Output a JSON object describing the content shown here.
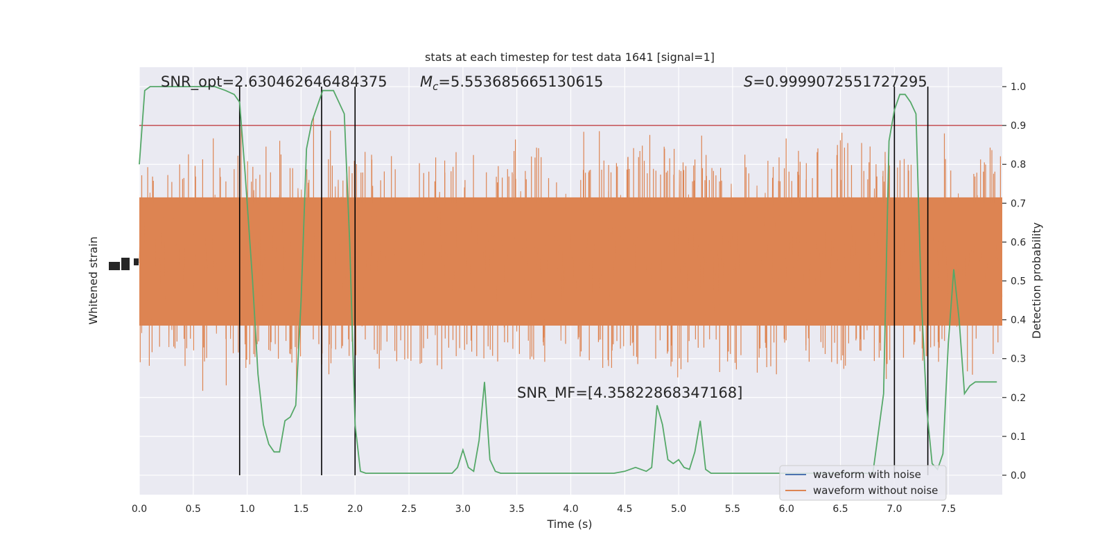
{
  "chart_data": {
    "type": "line",
    "title": "stats at each timestep for test data 1641 [signal=1]",
    "xlabel": "Time (s)",
    "ylabel_left": "Whitened strain",
    "ylabel_right": "Detection probability",
    "xlim": [
      0,
      8
    ],
    "ylim_right": [
      -0.05,
      1.05
    ],
    "xticks": [
      "0.0",
      "0.5",
      "1.0",
      "1.5",
      "2.0",
      "2.5",
      "3.0",
      "3.5",
      "4.0",
      "4.5",
      "5.0",
      "5.5",
      "6.0",
      "6.5",
      "7.0",
      "7.5"
    ],
    "yticks_right": [
      "0.0",
      "0.1",
      "0.2",
      "0.3",
      "0.4",
      "0.5",
      "0.6",
      "0.7",
      "0.8",
      "0.9",
      "1.0"
    ],
    "grid": true,
    "legend_position": "bottom-right",
    "annotations": {
      "snr_opt": "SNR_opt=2.630462646484375",
      "mc_symbol": "M",
      "mc_sub": "c",
      "mc_value": "=5.553685665130615",
      "s_symbol": "S",
      "s_value": "=0.9999072551727295",
      "snr_mf": "SNR_MF=[4.35822868347168]"
    },
    "threshold": 0.9,
    "vertical_lines_x": [
      0.93,
      1.69,
      2.0,
      7.0,
      7.31
    ],
    "series": [
      {
        "name": "waveform with noise",
        "color": "#4c72b0"
      },
      {
        "name": "waveform without noise",
        "color": "#dd8452"
      }
    ],
    "detection_probability": {
      "color": "#55a868",
      "x": [
        0.0,
        0.05,
        0.1,
        0.2,
        0.3,
        0.5,
        0.7,
        0.8,
        0.88,
        0.93,
        0.98,
        1.05,
        1.1,
        1.15,
        1.2,
        1.25,
        1.3,
        1.35,
        1.4,
        1.45,
        1.5,
        1.55,
        1.6,
        1.65,
        1.7,
        1.75,
        1.8,
        1.85,
        1.9,
        1.95,
        2.0,
        2.05,
        2.1,
        2.15,
        2.2,
        2.25,
        2.3,
        2.5,
        2.7,
        2.9,
        2.95,
        3.0,
        3.05,
        3.1,
        3.15,
        3.2,
        3.25,
        3.3,
        3.35,
        3.4,
        3.5,
        3.7,
        3.8,
        3.9,
        4.0,
        4.2,
        4.4,
        4.5,
        4.6,
        4.7,
        4.75,
        4.8,
        4.85,
        4.9,
        4.95,
        5.0,
        5.05,
        5.1,
        5.15,
        5.2,
        5.25,
        5.3,
        5.35,
        5.4,
        5.5,
        5.7,
        6.0,
        6.5,
        6.8,
        6.9,
        6.95,
        7.0,
        7.05,
        7.1,
        7.15,
        7.2,
        7.25,
        7.3,
        7.35,
        7.4,
        7.45,
        7.5,
        7.55,
        7.6,
        7.65,
        7.7,
        7.75,
        7.8,
        7.85,
        7.9,
        7.95
      ],
      "y": [
        0.8,
        0.99,
        1.0,
        1.0,
        1.0,
        1.0,
        1.0,
        0.99,
        0.98,
        0.96,
        0.78,
        0.5,
        0.26,
        0.13,
        0.08,
        0.06,
        0.06,
        0.14,
        0.15,
        0.18,
        0.45,
        0.84,
        0.91,
        0.95,
        0.99,
        0.99,
        0.99,
        0.96,
        0.93,
        0.6,
        0.13,
        0.01,
        0.005,
        0.005,
        0.005,
        0.005,
        0.005,
        0.005,
        0.005,
        0.005,
        0.02,
        0.065,
        0.02,
        0.01,
        0.09,
        0.24,
        0.04,
        0.01,
        0.005,
        0.005,
        0.005,
        0.005,
        0.005,
        0.005,
        0.005,
        0.005,
        0.005,
        0.01,
        0.02,
        0.01,
        0.02,
        0.18,
        0.13,
        0.04,
        0.03,
        0.04,
        0.02,
        0.015,
        0.06,
        0.14,
        0.015,
        0.005,
        0.005,
        0.005,
        0.005,
        0.005,
        0.005,
        0.005,
        0.005,
        0.21,
        0.86,
        0.94,
        0.98,
        0.98,
        0.96,
        0.93,
        0.45,
        0.17,
        0.03,
        0.015,
        0.055,
        0.34,
        0.53,
        0.4,
        0.21,
        0.23,
        0.24,
        0.24,
        0.24,
        0.24,
        0.24
      ]
    }
  }
}
